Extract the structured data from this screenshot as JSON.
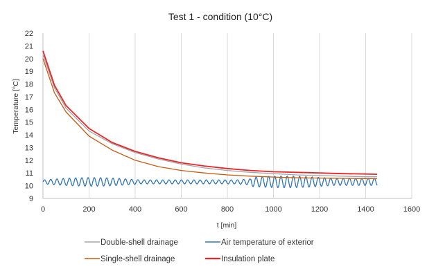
{
  "chart_data": {
    "type": "line",
    "title": "Test 1 - condition (10°C)",
    "xlabel": "t [min]",
    "ylabel": "Temperature [°C]",
    "xlim": [
      0,
      1600
    ],
    "ylim": [
      9,
      22
    ],
    "xticks": [
      0,
      200,
      400,
      600,
      800,
      1000,
      1200,
      1400,
      1600
    ],
    "xtick_labels": [
      "0",
      "200",
      "400",
      "600",
      "800",
      "1000",
      "1200",
      "1400",
      "1600"
    ],
    "yticks": [
      9,
      10,
      11,
      12,
      13,
      14,
      15,
      16,
      17,
      18,
      19,
      20,
      21,
      22
    ],
    "ytick_labels": [
      "9",
      "10",
      "11",
      "12",
      "13",
      "14",
      "15",
      "16",
      "17",
      "18",
      "19",
      "20",
      "21",
      "22"
    ],
    "grid": "vertical",
    "legend_position": "bottom",
    "series": [
      {
        "name": "Double-shell drainage",
        "color": "#a5a5a5",
        "x": [
          0,
          50,
          100,
          200,
          300,
          400,
          500,
          600,
          700,
          800,
          900,
          1000,
          1100,
          1200,
          1300,
          1400,
          1450
        ],
        "y": [
          20.3,
          17.7,
          16.1,
          14.3,
          13.3,
          12.6,
          12.1,
          11.7,
          11.4,
          11.2,
          11.05,
          10.95,
          10.85,
          10.8,
          10.75,
          10.7,
          10.7
        ]
      },
      {
        "name": "Air temperature of exterior",
        "color": "#2e75b6",
        "x": [
          0,
          200,
          400,
          600,
          800,
          1000,
          1200,
          1400,
          1450
        ],
        "y": [
          10.3,
          10.3,
          10.3,
          10.3,
          10.3,
          10.3,
          10.3,
          10.3,
          10.3
        ]
      },
      {
        "name": "Single-shell drainage",
        "color": "#c55a11",
        "x": [
          0,
          50,
          100,
          200,
          300,
          400,
          500,
          600,
          700,
          800,
          900,
          1000,
          1100,
          1200,
          1300,
          1400,
          1450
        ],
        "y": [
          20.0,
          17.3,
          15.8,
          13.9,
          12.8,
          12.0,
          11.5,
          11.2,
          11.0,
          10.85,
          10.75,
          10.68,
          10.62,
          10.6,
          10.58,
          10.56,
          10.55
        ]
      },
      {
        "name": "Insulation plate",
        "color": "#e8262a",
        "x": [
          0,
          50,
          100,
          200,
          300,
          400,
          500,
          600,
          700,
          800,
          900,
          1000,
          1100,
          1200,
          1300,
          1400,
          1450
        ],
        "y": [
          20.6,
          17.9,
          16.3,
          14.5,
          13.4,
          12.7,
          12.2,
          11.8,
          11.55,
          11.35,
          11.2,
          11.1,
          11.05,
          11.0,
          10.95,
          10.92,
          10.9
        ]
      }
    ]
  }
}
